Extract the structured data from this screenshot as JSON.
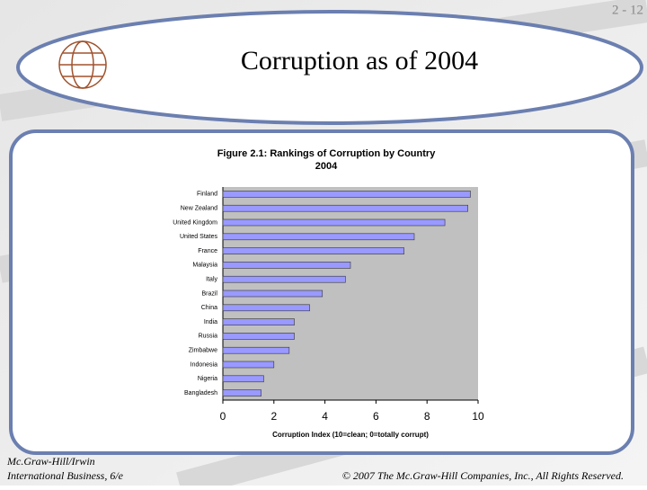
{
  "slide": {
    "number": "2 - 12",
    "title": "Corruption as of 2004",
    "footer_left": [
      "Mc.Graw-Hill/Irwin",
      "International Business, 6/e"
    ],
    "footer_right": "© 2007 The Mc.Graw-Hill Companies, Inc., All Rights Reserved."
  },
  "chart_data": {
    "type": "hbar",
    "title": "Figure 2.1: Rankings of Corruption by Country",
    "subtitle": "2004",
    "x_label": "Corruption Index (10=clean; 0=totally corrupt)",
    "categories": [
      "Finland",
      "New Zealand",
      "United Kingdom",
      "United States",
      "France",
      "Malaysia",
      "Italy",
      "Brazil",
      "China",
      "India",
      "Russia",
      "Zimbabwe",
      "Indonesia",
      "Nigeria",
      "Bangladesh"
    ],
    "values": [
      9.7,
      9.6,
      8.7,
      7.5,
      7.1,
      5.0,
      4.8,
      3.9,
      3.4,
      2.8,
      2.8,
      2.6,
      2.0,
      1.6,
      1.5
    ],
    "color": "#9999ff",
    "xlim": [
      0,
      10
    ],
    "xticks": [
      0,
      2,
      4,
      6,
      8,
      10
    ],
    "grid": false
  }
}
